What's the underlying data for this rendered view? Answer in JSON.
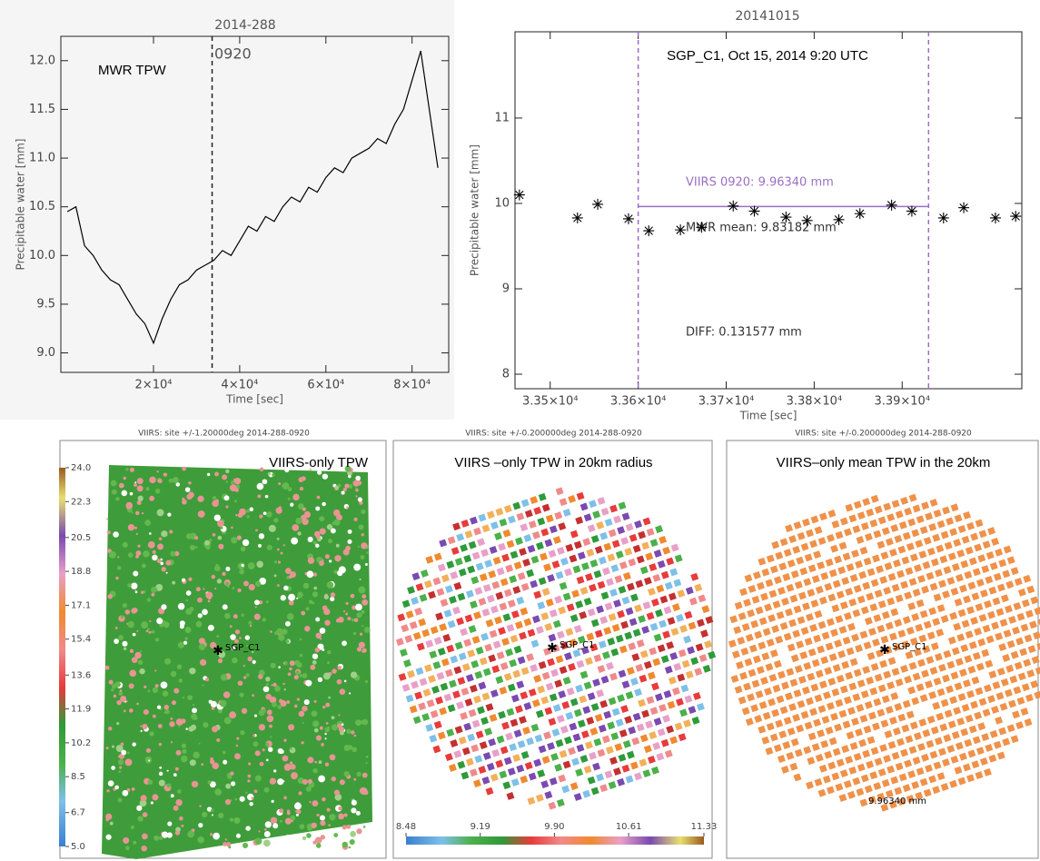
{
  "chart_data": [
    {
      "type": "line",
      "title": "2014-288",
      "xlabel": "Time [sec]",
      "ylabel": "Precipitable water [mm]",
      "annotations": [
        "MWR TPW",
        "0920"
      ],
      "color": "#000000",
      "x": [
        0,
        2000,
        4000,
        6000,
        8000,
        10000,
        12000,
        14000,
        16000,
        18000,
        20000,
        22000,
        24000,
        26000,
        28000,
        30000,
        32000,
        34000,
        36000,
        38000,
        40000,
        42000,
        44000,
        46000,
        48000,
        50000,
        52000,
        54000,
        56000,
        58000,
        60000,
        62000,
        64000,
        66000,
        68000,
        70000,
        72000,
        74000,
        76000,
        78000,
        80000,
        82000,
        84000,
        86000
      ],
      "values": [
        10.45,
        10.5,
        10.1,
        10.0,
        9.85,
        9.75,
        9.7,
        9.55,
        9.4,
        9.3,
        9.1,
        9.35,
        9.55,
        9.7,
        9.75,
        9.85,
        9.9,
        9.95,
        10.05,
        10.0,
        10.15,
        10.3,
        10.25,
        10.4,
        10.35,
        10.5,
        10.6,
        10.55,
        10.7,
        10.65,
        10.8,
        10.9,
        10.85,
        11.0,
        11.05,
        11.1,
        11.2,
        11.15,
        11.35,
        11.5,
        11.8,
        12.1,
        11.5,
        10.9
      ],
      "vlines": [
        33600
      ],
      "xlim": [
        -1500,
        88500
      ],
      "ylim": [
        8.8,
        12.25
      ],
      "xticks": [
        {
          "value": 20000,
          "label": "2×10⁴"
        },
        {
          "value": 40000,
          "label": "4×10⁴"
        },
        {
          "value": 60000,
          "label": "6×10⁴"
        },
        {
          "value": 80000,
          "label": "8×10⁴"
        }
      ],
      "yticks": [
        {
          "value": 9,
          "label": "9.0"
        },
        {
          "value": 9.5,
          "label": "9.5"
        },
        {
          "value": 10,
          "label": "10.0"
        },
        {
          "value": 10.5,
          "label": "10.5"
        },
        {
          "value": 11,
          "label": "11.0"
        },
        {
          "value": 11.5,
          "label": "11.5"
        },
        {
          "value": 12,
          "label": "12.0"
        }
      ]
    },
    {
      "type": "scatter",
      "title": "20141015",
      "xlabel": "Time [sec]",
      "ylabel": "Precipitable water [mm]",
      "annotations": [
        "SGP_C1,  Oct 15, 2014 9:20 UTC",
        "VIIRS 0920: 9.96340 mm",
        "MWR  mean: 9.83182 mm",
        "DIFF: 0.131577 mm"
      ],
      "color": "#000000",
      "line_color": "#9b6fc4",
      "x": [
        33465,
        33531,
        33554,
        33589,
        33612,
        33648,
        33672,
        33708,
        33732,
        33768,
        33792,
        33828,
        33852,
        33888,
        33911,
        33947,
        33970,
        34006,
        34029
      ],
      "values": [
        10.1,
        9.83,
        9.99,
        9.82,
        9.68,
        9.69,
        9.72,
        9.97,
        9.91,
        9.84,
        9.8,
        9.81,
        9.88,
        9.98,
        9.91,
        9.83,
        9.95,
        9.83,
        9.85
      ],
      "vlines": [
        33600,
        33930
      ],
      "reference_line": 9.9634,
      "xlim": [
        33460,
        34036
      ],
      "ylim": [
        7.83,
        12.01
      ],
      "xticks": [
        {
          "value": 33500,
          "label": "3.35×10⁴"
        },
        {
          "value": 33600,
          "label": "3.36×10⁴"
        },
        {
          "value": 33700,
          "label": "3.37×10⁴"
        },
        {
          "value": 33800,
          "label": "3.38×10⁴"
        },
        {
          "value": 33900,
          "label": "3.39×10⁴"
        }
      ],
      "yticks": [
        8,
        9,
        10,
        11
      ]
    },
    {
      "type": "map",
      "title": "VIIRS: site +/-1.20000deg 2014-288-0920",
      "label": "VIIRS-only  TPW",
      "site": "SGP_C1",
      "colorbar": {
        "lim": [
          5,
          24
        ],
        "ticks": [
          {
            "value": 5,
            "label": "5.0"
          },
          6.7,
          8.5,
          10.2,
          11.9,
          13.6,
          15.4,
          17.1,
          18.8,
          20.5,
          22.3,
          {
            "value": 24,
            "label": "24.0"
          }
        ]
      }
    },
    {
      "type": "map",
      "title": "VIIRS: site +/-0.200000deg 2014-288-0920",
      "label": "VIIRS –only  TPW in 20km radius",
      "site": "SGP_C1",
      "colorbar": {
        "lim": [
          8.48,
          11.33
        ],
        "ticks": [
          8.48,
          9.19,
          {
            "value": 9.9,
            "label": "9.90"
          },
          10.61,
          11.33
        ]
      }
    },
    {
      "type": "map",
      "title": "VIIRS: site +/-0.200000deg 2014-288-0920",
      "label": "VIIRS–only  mean TPW in the 20km",
      "site": "SGP_C1",
      "value_label": "9.96340 mm"
    }
  ]
}
